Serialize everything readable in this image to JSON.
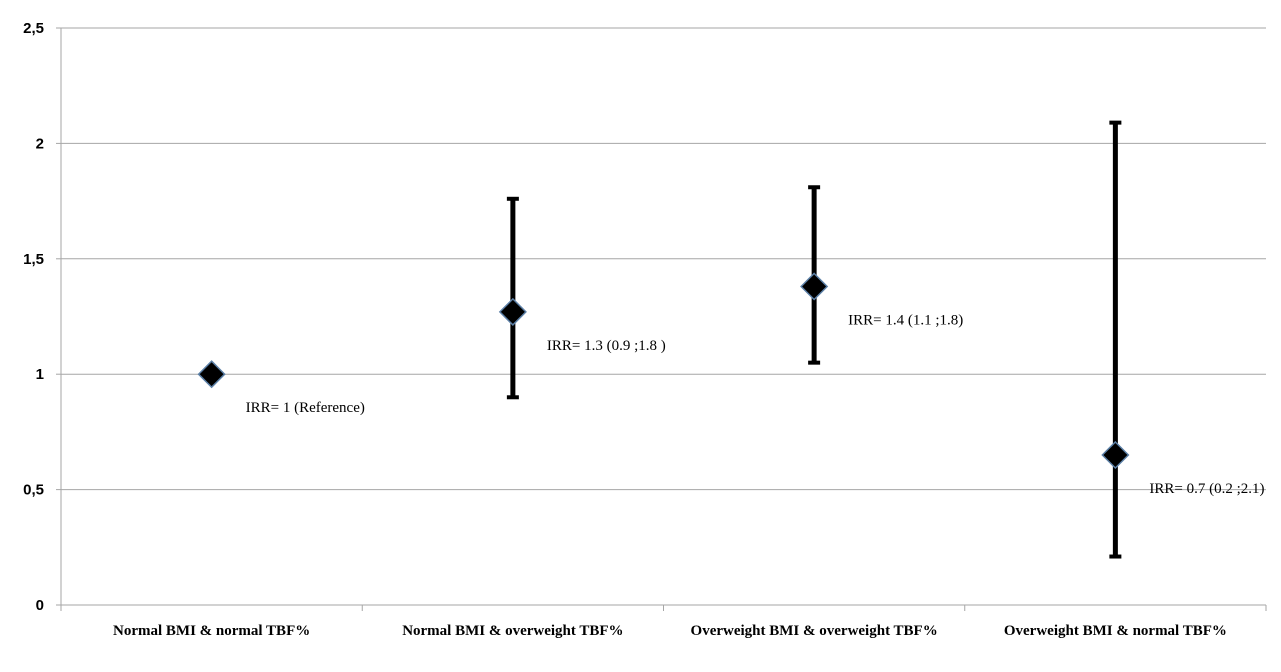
{
  "chart_data": {
    "type": "scatter",
    "y_tick_labels": [
      "0",
      "0,5",
      "1",
      "1,5",
      "2",
      "2,5"
    ],
    "ylim": [
      0,
      2.5
    ],
    "grid": true,
    "categories": [
      "Normal BMI & normal TBF%",
      "Normal BMI & overweight TBF%",
      "Overweight BMI & overweight TBF%",
      "Overweight BMI & normal TBF%"
    ],
    "points": [
      {
        "value": 1.0,
        "ci": null,
        "annotation": "IRR= 1 (Reference)"
      },
      {
        "value": 1.27,
        "ci": [
          0.9,
          1.76
        ],
        "annotation": "IRR= 1.3 (0.9 ;1.8 )"
      },
      {
        "value": 1.38,
        "ci": [
          1.05,
          1.81
        ],
        "annotation": "IRR= 1.4 (1.1 ;1.8)"
      },
      {
        "value": 0.65,
        "ci": [
          0.21,
          2.09
        ],
        "annotation": "IRR= 0.7 (0.2 ;2.1)"
      }
    ],
    "marker": "diamond",
    "colors": {
      "marker": "#000000",
      "marker_edge": "#5b7fa6",
      "error_bar": "#000000",
      "grid": "#a6a6a6",
      "axis": "#a6a6a6"
    }
  }
}
